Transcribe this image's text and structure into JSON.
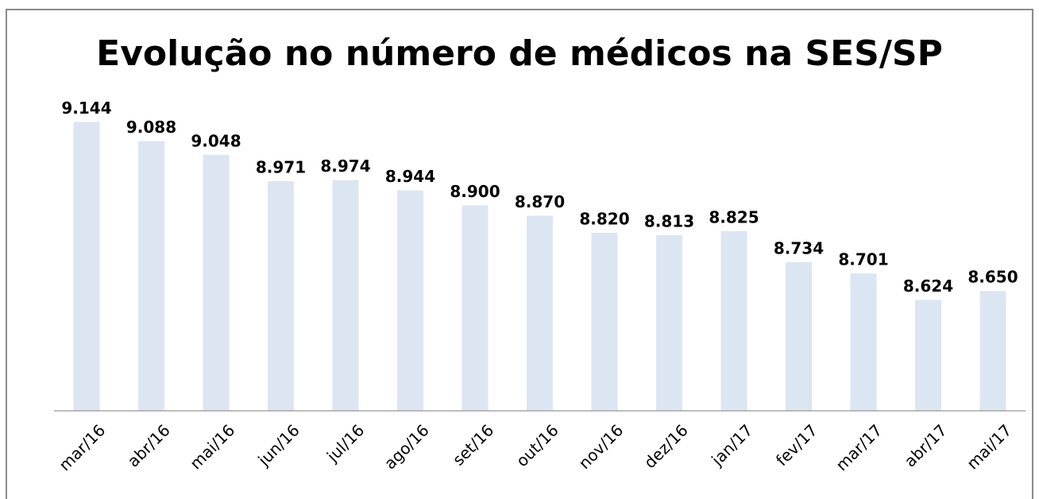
{
  "chart_data": {
    "type": "bar",
    "title": "Evolução no número de médicos na SES/SP",
    "categories": [
      "mar/16",
      "abr/16",
      "mai/16",
      "jun/16",
      "jul/16",
      "ago/16",
      "set/16",
      "out/16",
      "nov/16",
      "dez/16",
      "jan/17",
      "fev/17",
      "mar/17",
      "abr/17",
      "mai/17"
    ],
    "values": [
      9144,
      9088,
      9048,
      8971,
      8974,
      8944,
      8900,
      8870,
      8820,
      8813,
      8825,
      8734,
      8701,
      8624,
      8650
    ],
    "value_labels": [
      "9.144",
      "9.088",
      "9.048",
      "8.971",
      "8.974",
      "8.944",
      "8.900",
      "8.870",
      "8.820",
      "8.813",
      "8.825",
      "8.734",
      "8.701",
      "8.624",
      "8.650"
    ],
    "color": "#dce6f2",
    "ylim": [
      8300,
      9300
    ]
  }
}
